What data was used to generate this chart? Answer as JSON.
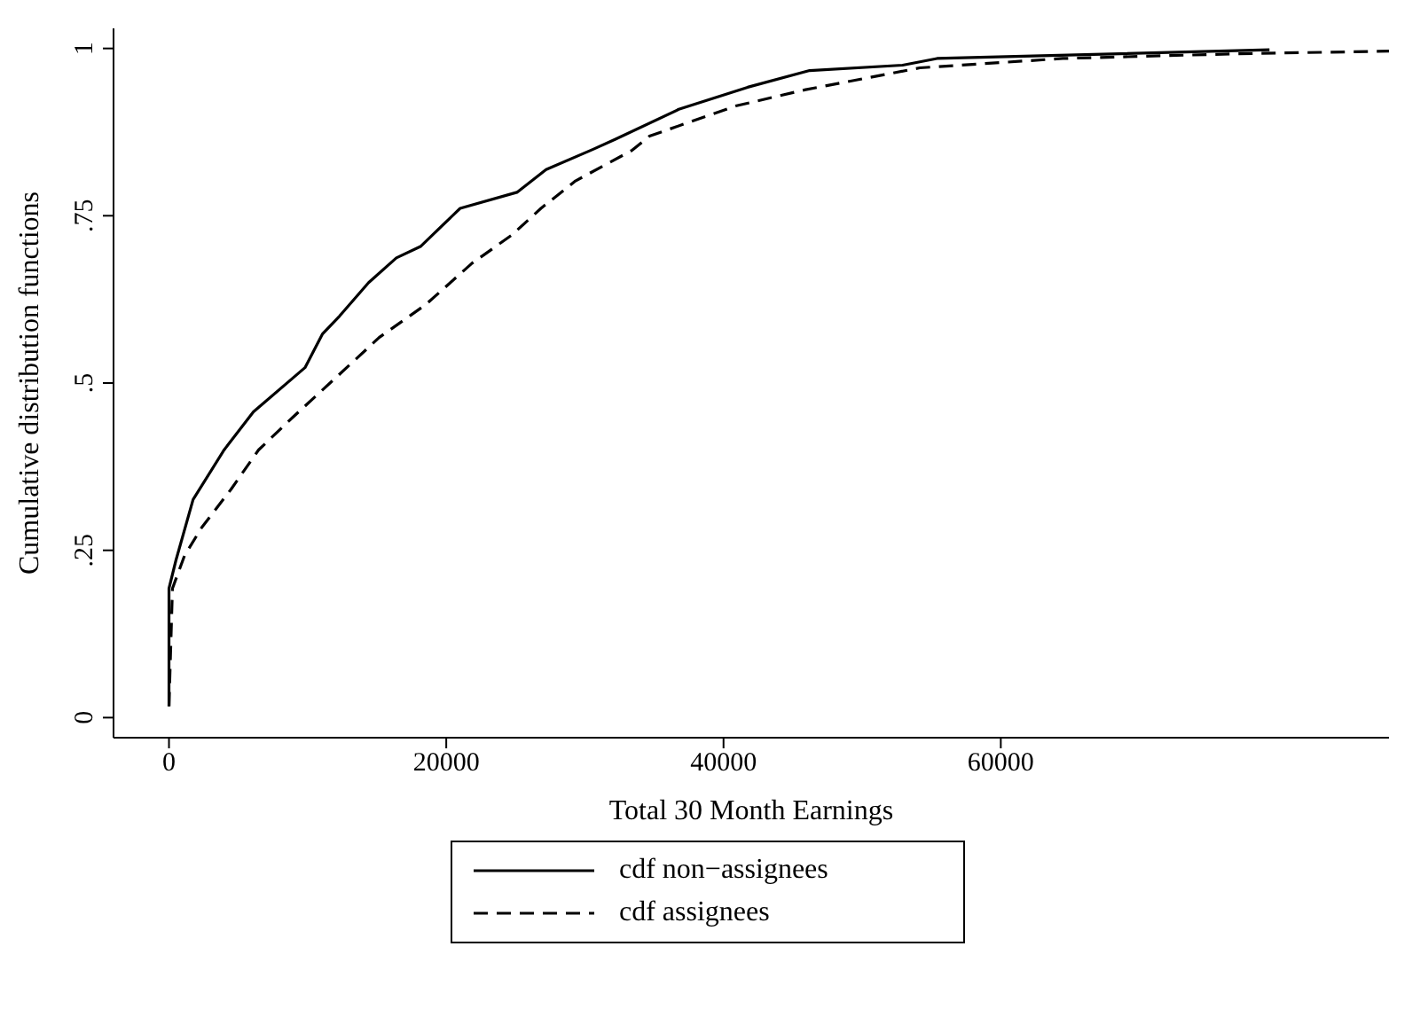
{
  "chart_data": {
    "type": "line",
    "xlabel": "Total 30 Month Earnings",
    "ylabel": "Cumulative distribution functions",
    "xlim": [
      -4000,
      88000
    ],
    "xticks": [
      0,
      20000,
      40000,
      60000
    ],
    "ylim": [
      -0.03,
      1.03
    ],
    "yticks": [
      0,
      {
        "value": 0.25,
        "label": ".25"
      },
      {
        "value": 0.5,
        "label": ".5"
      },
      {
        "value": 0.75,
        "label": ".75"
      },
      1
    ],
    "legend": "bottom",
    "series": [
      {
        "name": "cdf non−assignees",
        "color": "#000000",
        "line_style": "solid",
        "x": [
          0,
          0,
          500,
          1740,
          3975,
          6090,
          9810,
          11060,
          12300,
          14400,
          16400,
          18140,
          21000,
          25100,
          27200,
          30560,
          32170,
          36770,
          41740,
          46210,
          52920,
          55400,
          68570,
          79380
        ],
        "values": [
          0.017,
          0.193,
          0.235,
          0.326,
          0.4,
          0.457,
          0.523,
          0.573,
          0.6,
          0.65,
          0.687,
          0.704,
          0.761,
          0.785,
          0.819,
          0.849,
          0.864,
          0.909,
          0.942,
          0.967,
          0.975,
          0.985,
          0.992,
          0.998
        ]
      },
      {
        "name": "cdf assignees",
        "color": "#000000",
        "line_style": "dashed",
        "x": [
          0,
          250,
          1120,
          2360,
          4470,
          6460,
          8940,
          11930,
          15160,
          18510,
          21860,
          24720,
          26830,
          29320,
          33420,
          34660,
          40870,
          45840,
          54160,
          64470,
          76890,
          88000
        ],
        "values": [
          0.017,
          0.193,
          0.242,
          0.284,
          0.341,
          0.4,
          0.449,
          0.506,
          0.568,
          0.617,
          0.679,
          0.721,
          0.761,
          0.802,
          0.848,
          0.869,
          0.914,
          0.938,
          0.971,
          0.985,
          0.992,
          0.996
        ]
      }
    ]
  }
}
